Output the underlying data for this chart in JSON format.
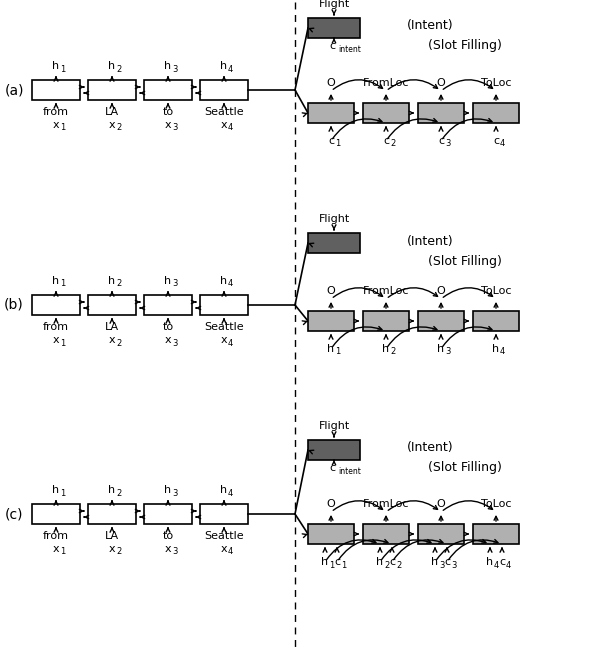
{
  "fig_width": 5.96,
  "fig_height": 6.5,
  "dpi": 100,
  "bg_color": "#ffffff",
  "enc_fc": "#ffffff",
  "enc_ec": "#000000",
  "dec_fc": "#b0b0b0",
  "dec_ec": "#000000",
  "int_fc": "#606060",
  "int_ec": "#000000",
  "words": [
    "from",
    "LA",
    "to",
    "Seattle"
  ],
  "slot_labels": [
    "O",
    "FromLoc",
    "O",
    "ToLoc"
  ],
  "panel_labels": [
    "(a)",
    "(b)",
    "(c)"
  ]
}
